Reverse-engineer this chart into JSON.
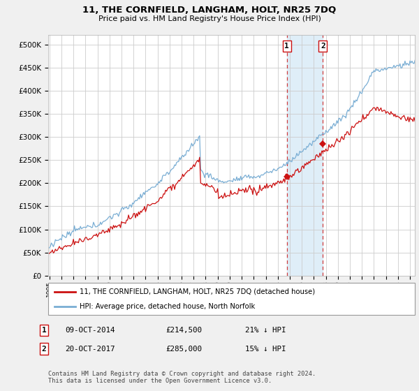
{
  "title": "11, THE CORNFIELD, LANGHAM, HOLT, NR25 7DQ",
  "subtitle": "Price paid vs. HM Land Registry's House Price Index (HPI)",
  "hpi_color": "#7aaed4",
  "price_color": "#cc1111",
  "bg_color": "#f0f0f0",
  "plot_bg": "#ffffff",
  "grid_color": "#cccccc",
  "vline1_date": 2014.75,
  "vline2_date": 2017.75,
  "sale1_price": 214500,
  "sale2_price": 285000,
  "annotation1": {
    "num": "1",
    "date": "09-OCT-2014",
    "price": "£214,500",
    "pct": "21% ↓ HPI"
  },
  "annotation2": {
    "num": "2",
    "date": "20-OCT-2017",
    "price": "£285,000",
    "pct": "15% ↓ HPI"
  },
  "legend1": "11, THE CORNFIELD, LANGHAM, HOLT, NR25 7DQ (detached house)",
  "legend2": "HPI: Average price, detached house, North Norfolk",
  "footer": "Contains HM Land Registry data © Crown copyright and database right 2024.\nThis data is licensed under the Open Government Licence v3.0.",
  "ylim_max": 520000,
  "xlim_start": 1994.9,
  "xlim_end": 2025.4,
  "yticks": [
    0,
    50000,
    100000,
    150000,
    200000,
    250000,
    300000,
    350000,
    400000,
    450000,
    500000
  ]
}
